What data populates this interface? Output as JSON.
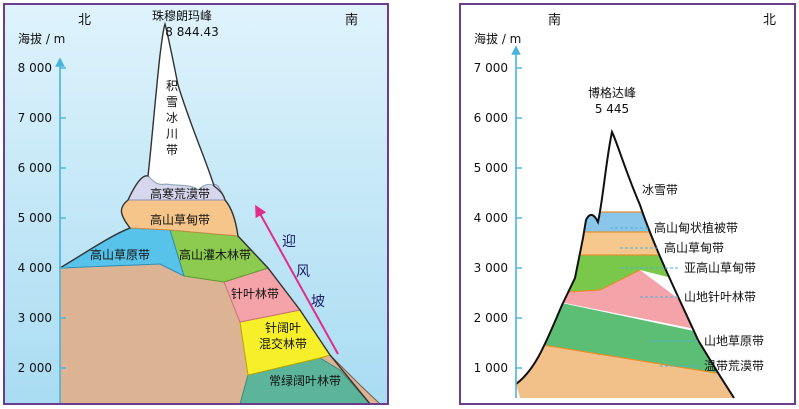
{
  "left_panel": {
    "axis_title": "海拔 / m",
    "direction_left": "北",
    "direction_right": "南",
    "peak_name": "珠穆朗玛峰",
    "peak_height": "8 844.43",
    "ticks": [
      "8 000",
      "7 000",
      "6 000",
      "5 000",
      "4 000",
      "3 000",
      "2 000"
    ],
    "zones": {
      "snow_line1": "积",
      "snow_line2": "雪",
      "snow_line3": "冰",
      "snow_line4": "川",
      "snow_line5": "带",
      "desert": "高寒荒漠带",
      "meadow": "高山草甸带",
      "steppe": "高山草原带",
      "shrub": "高山灌木林带",
      "conifer": "针叶林带",
      "mixed_line1": "针阔叶",
      "mixed_line2": "混交林带",
      "evergreen": "常绿阔叶林带"
    },
    "windward": [
      "迎",
      "风",
      "坡"
    ]
  },
  "right_panel": {
    "axis_title": "海拔 / m",
    "direction_left": "南",
    "direction_right": "北",
    "peak_name": "博格达峰",
    "peak_height": "5 445",
    "ticks": [
      "7 000",
      "6 000",
      "5 000",
      "4 000",
      "3 000",
      "2 000",
      "1 000"
    ],
    "zones": {
      "snow": "冰雪带",
      "cushion": "高山甸状植被带",
      "meadow": "高山草甸带",
      "subalpine": "亚高山草甸带",
      "conifer": "山地针叶林带",
      "steppe": "山地草原带",
      "desert": "温带荒漠带"
    }
  },
  "colors": {
    "panel_border": "#6a3d8e",
    "sky": "#bfe6f6",
    "axis": "#4ab3dc",
    "snow": "#ffffff",
    "desert_pale": "#d6d6ec",
    "meadow": "#f5c58a",
    "steppe": "#58c3ea",
    "shrub": "#8ccb50",
    "conifer": "#f4a3a8",
    "mixed": "#f6ef2a",
    "evergreen": "#5cb59a",
    "rock": "#dcb393",
    "windward_arrow": "#e02d8a"
  }
}
